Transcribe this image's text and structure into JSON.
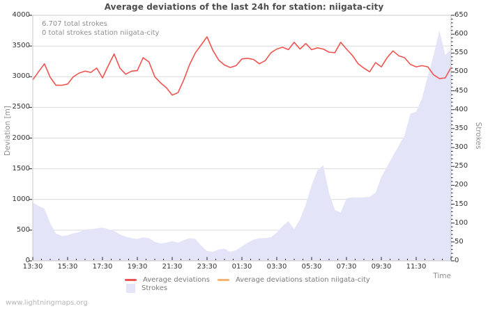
{
  "chart_data": {
    "type": "area",
    "title": "Average deviations of the last 24h for station: niigata-city",
    "xlabel": "Time",
    "ylabel_left": "Deviation [m]",
    "ylabel_right": "Strokes",
    "annotations": [
      "6.707 total strokes",
      "0 total strokes station niigata-city"
    ],
    "x_start": "13:30",
    "x_step_minutes": 20,
    "x_total_minutes": 1440,
    "x_tick_labels": [
      "13:30",
      "15:30",
      "17:30",
      "19:30",
      "21:30",
      "23:30",
      "01:30",
      "03:30",
      "05:30",
      "07:30",
      "09:30",
      "11:30"
    ],
    "ylim_left": [
      0,
      4000
    ],
    "ylim_right": [
      0,
      650
    ],
    "y_left_ticks": [
      0,
      500,
      1000,
      1500,
      2000,
      2500,
      3000,
      3500,
      4000
    ],
    "y_right_ticks": [
      0,
      50,
      100,
      150,
      200,
      250,
      300,
      350,
      400,
      450,
      500,
      550,
      600,
      650
    ],
    "grid": "horizontal",
    "legend_position": "bottom",
    "colors": {
      "grid": "#dadada",
      "border": "#c8c8c8",
      "tick": "#222222"
    },
    "series": [
      {
        "name": "Average deviations",
        "type": "line",
        "axis": "left",
        "color": "#f0534f",
        "values": [
          2950,
          3080,
          3210,
          2990,
          2860,
          2860,
          2880,
          3000,
          3060,
          3090,
          3070,
          3140,
          2980,
          3180,
          3370,
          3140,
          3040,
          3090,
          3100,
          3310,
          3240,
          3000,
          2900,
          2820,
          2700,
          2740,
          2950,
          3200,
          3390,
          3520,
          3650,
          3430,
          3270,
          3190,
          3150,
          3180,
          3290,
          3300,
          3280,
          3210,
          3260,
          3390,
          3450,
          3480,
          3440,
          3560,
          3450,
          3540,
          3440,
          3470,
          3450,
          3400,
          3390,
          3560,
          3450,
          3350,
          3210,
          3140,
          3080,
          3230,
          3160,
          3310,
          3420,
          3340,
          3310,
          3200,
          3160,
          3180,
          3160,
          3030,
          2970,
          2980,
          3150
        ]
      },
      {
        "name": "Average deviations station niigata-city",
        "type": "line",
        "axis": "left",
        "color": "#f9b16e",
        "values": []
      },
      {
        "name": "Strokes",
        "type": "area",
        "axis": "right",
        "color": "#e4e4f8",
        "values": [
          155,
          145,
          138,
          100,
          72,
          66,
          68,
          73,
          76,
          83,
          84,
          86,
          88,
          84,
          79,
          70,
          64,
          60,
          58,
          62,
          60,
          50,
          46,
          48,
          52,
          48,
          55,
          60,
          58,
          40,
          26,
          24,
          30,
          32,
          24,
          28,
          38,
          48,
          56,
          60,
          60,
          62,
          75,
          92,
          105,
          84,
          110,
          150,
          200,
          240,
          253,
          180,
          135,
          128,
          165,
          168,
          167,
          168,
          170,
          180,
          222,
          250,
          278,
          305,
          332,
          390,
          395,
          430,
          490,
          545,
          610,
          545,
          560
        ]
      }
    ]
  },
  "footer": {
    "url": "www.lightningmaps.org"
  }
}
